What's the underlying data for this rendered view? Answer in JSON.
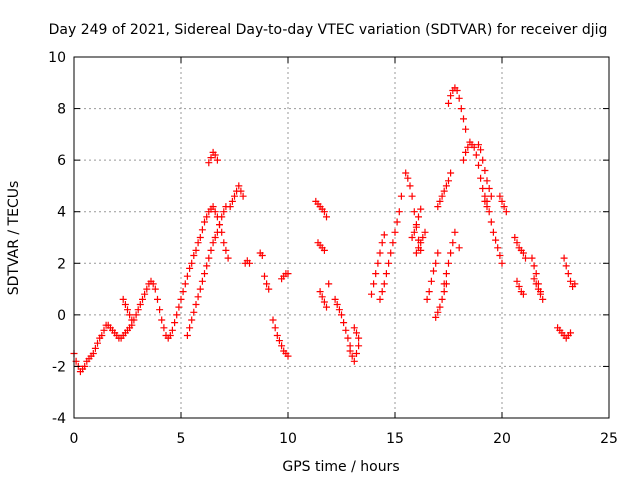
{
  "chart_data": {
    "type": "scatter",
    "title": "Day 249 of 2021, Sidereal Day-to-day VTEC variation (SDTVAR) for receiver djig",
    "xlabel": "GPS time / hours",
    "ylabel": "SDTVAR / TECUs",
    "xlim": [
      0,
      25
    ],
    "ylim": [
      -4,
      10
    ],
    "xticks": [
      "0",
      "5",
      "10",
      "15",
      "20",
      "25"
    ],
    "yticks": [
      "-4",
      "-2",
      "0",
      "2",
      "4",
      "6",
      "8",
      "10"
    ],
    "grid": true,
    "marker": "+",
    "color": "#ff0000",
    "series": [
      {
        "name": "SDTVAR",
        "x": [
          0.0,
          0.1,
          0.2,
          0.3,
          0.4,
          0.5,
          0.6,
          0.7,
          0.8,
          0.9,
          1.0,
          1.1,
          1.2,
          1.3,
          1.4,
          1.5,
          1.6,
          1.7,
          1.8,
          1.9,
          2.0,
          2.1,
          2.2,
          2.3,
          2.4,
          2.5,
          2.6,
          2.7,
          2.8,
          2.9,
          3.0,
          3.1,
          3.2,
          3.3,
          3.4,
          3.5,
          3.6,
          3.7,
          3.8,
          3.9,
          4.0,
          4.1,
          4.2,
          4.3,
          2.3,
          2.4,
          2.5,
          2.6,
          2.7,
          4.4,
          4.5,
          4.6,
          4.7,
          4.8,
          4.9,
          5.0,
          5.1,
          5.2,
          5.3,
          5.4,
          5.5,
          5.6,
          5.7,
          5.8,
          5.9,
          6.0,
          6.1,
          6.2,
          6.3,
          6.4,
          6.5,
          6.6,
          6.7,
          6.8,
          6.9,
          7.0,
          7.1,
          7.2,
          5.3,
          5.4,
          5.5,
          5.6,
          5.7,
          5.8,
          5.9,
          6.0,
          6.1,
          6.2,
          6.3,
          6.4,
          6.5,
          6.6,
          6.7,
          6.8,
          6.9,
          7.0,
          7.1,
          6.3,
          6.4,
          6.5,
          6.6,
          6.7,
          7.3,
          7.4,
          7.5,
          7.6,
          7.7,
          7.8,
          7.9,
          8.0,
          8.1,
          8.2,
          8.7,
          8.8,
          8.9,
          9.0,
          9.1,
          9.3,
          9.4,
          9.5,
          9.6,
          9.7,
          9.8,
          9.9,
          10.0,
          9.7,
          9.8,
          9.9,
          10.0,
          11.3,
          11.4,
          11.5,
          11.6,
          11.7,
          11.8,
          11.4,
          11.5,
          11.6,
          11.7,
          11.5,
          11.6,
          11.7,
          11.8,
          11.9,
          12.2,
          12.3,
          12.4,
          12.5,
          12.6,
          12.7,
          12.8,
          12.9,
          12.9,
          13.0,
          13.1,
          13.2,
          13.3,
          13.3,
          13.2,
          13.1,
          13.9,
          14.0,
          14.1,
          14.2,
          14.3,
          14.4,
          14.5,
          14.3,
          14.4,
          14.5,
          14.6,
          14.7,
          14.8,
          14.9,
          15.0,
          15.1,
          15.2,
          15.3,
          15.5,
          15.6,
          15.7,
          15.8,
          15.9,
          16.0,
          16.1,
          16.2,
          15.8,
          15.9,
          16.0,
          16.1,
          16.2,
          16.0,
          16.1,
          16.2,
          16.3,
          16.4,
          16.5,
          16.6,
          16.7,
          16.8,
          16.9,
          17.0,
          17.0,
          17.1,
          17.2,
          17.3,
          17.4,
          17.5,
          17.6,
          16.9,
          17.0,
          17.1,
          17.2,
          17.3,
          17.4,
          17.3,
          17.4,
          17.5,
          17.6,
          17.7,
          17.8,
          18.0,
          17.5,
          17.6,
          17.7,
          17.8,
          17.9,
          18.0,
          18.1,
          18.2,
          18.3,
          18.2,
          18.3,
          18.4,
          18.5,
          18.6,
          18.7,
          18.8,
          18.9,
          19.0,
          19.1,
          19.2,
          19.3,
          18.9,
          19.0,
          19.1,
          19.2,
          19.3,
          19.4,
          19.5,
          19.2,
          19.3,
          19.4,
          19.5,
          19.6,
          19.7,
          19.8,
          19.9,
          20.0,
          19.9,
          20.0,
          20.1,
          20.2,
          20.6,
          20.7,
          20.8,
          20.9,
          21.0,
          21.1,
          20.7,
          20.8,
          20.9,
          21.0,
          21.4,
          21.5,
          21.6,
          21.7,
          21.8,
          21.9,
          21.5,
          21.6,
          21.7,
          21.8,
          22.9,
          23.0,
          23.1,
          23.2,
          23.3,
          23.4,
          22.6,
          22.7,
          22.8,
          22.9,
          23.0,
          23.1,
          23.2
        ],
        "y": [
          -1.5,
          -1.8,
          -2.0,
          -2.2,
          -2.1,
          -2.0,
          -1.8,
          -1.7,
          -1.6,
          -1.5,
          -1.3,
          -1.1,
          -0.9,
          -0.8,
          -0.6,
          -0.4,
          -0.4,
          -0.5,
          -0.6,
          -0.7,
          -0.8,
          -0.9,
          -0.9,
          -0.8,
          -0.7,
          -0.6,
          -0.5,
          -0.4,
          -0.2,
          0.0,
          0.2,
          0.4,
          0.6,
          0.8,
          1.0,
          1.2,
          1.3,
          1.2,
          1.0,
          0.6,
          0.2,
          -0.2,
          -0.5,
          -0.8,
          0.6,
          0.4,
          0.2,
          0.0,
          -0.2,
          -0.9,
          -0.8,
          -0.6,
          -0.3,
          0.0,
          0.3,
          0.6,
          0.9,
          1.2,
          1.5,
          1.8,
          2.0,
          2.3,
          2.5,
          2.8,
          3.0,
          3.3,
          3.6,
          3.8,
          4.0,
          4.1,
          4.2,
          4.0,
          3.8,
          3.5,
          3.2,
          2.8,
          2.5,
          2.2,
          -0.8,
          -0.5,
          -0.2,
          0.1,
          0.4,
          0.7,
          1.0,
          1.3,
          1.6,
          1.9,
          2.2,
          2.5,
          2.8,
          3.0,
          3.2,
          3.5,
          3.8,
          4.0,
          4.2,
          5.9,
          6.1,
          6.3,
          6.2,
          6.0,
          4.2,
          4.4,
          4.6,
          4.8,
          5.0,
          4.8,
          4.6,
          2.0,
          2.1,
          2.0,
          2.4,
          2.3,
          1.5,
          1.2,
          1.0,
          -0.2,
          -0.5,
          -0.8,
          -1.0,
          -1.2,
          -1.4,
          -1.5,
          -1.6,
          1.4,
          1.5,
          1.6,
          1.6,
          4.4,
          4.3,
          4.2,
          4.1,
          4.0,
          3.8,
          2.8,
          2.7,
          2.6,
          2.5,
          0.9,
          0.7,
          0.5,
          0.3,
          1.2,
          0.6,
          0.4,
          0.2,
          0.0,
          -0.3,
          -0.6,
          -0.9,
          -1.2,
          -1.4,
          -1.6,
          -1.8,
          -1.5,
          -1.2,
          -0.9,
          -0.7,
          -0.5,
          0.8,
          1.2,
          1.6,
          2.0,
          2.4,
          2.8,
          3.1,
          0.6,
          0.9,
          1.2,
          1.6,
          2.0,
          2.4,
          2.8,
          3.2,
          3.6,
          4.0,
          4.6,
          5.5,
          5.3,
          5.0,
          4.6,
          4.0,
          3.4,
          2.9,
          2.5,
          3.0,
          3.2,
          3.5,
          3.8,
          4.1,
          2.4,
          2.6,
          2.8,
          3.0,
          3.2,
          0.6,
          0.9,
          1.3,
          1.7,
          2.0,
          2.4,
          4.2,
          4.4,
          4.6,
          4.8,
          5.0,
          5.2,
          5.5,
          -0.1,
          0.1,
          0.3,
          0.6,
          0.9,
          1.2,
          1.2,
          1.6,
          2.0,
          2.4,
          2.8,
          3.2,
          2.6,
          8.2,
          8.5,
          8.7,
          8.8,
          8.7,
          8.4,
          8.0,
          7.6,
          7.2,
          6.0,
          6.3,
          6.5,
          6.7,
          6.6,
          6.5,
          6.2,
          5.8,
          5.3,
          4.9,
          4.6,
          4.4,
          6.6,
          6.4,
          6.0,
          5.6,
          5.2,
          4.9,
          4.6,
          4.4,
          4.2,
          4.0,
          3.6,
          3.2,
          2.9,
          2.6,
          2.3,
          2.0,
          4.6,
          4.4,
          4.2,
          4.0,
          3.0,
          2.8,
          2.6,
          2.5,
          2.4,
          2.2,
          1.3,
          1.1,
          0.9,
          0.8,
          2.2,
          1.9,
          1.6,
          1.2,
          0.9,
          0.6,
          1.4,
          1.2,
          1.0,
          0.8,
          2.2,
          1.9,
          1.6,
          1.3,
          1.1,
          1.2,
          -0.5,
          -0.6,
          -0.7,
          -0.8,
          -0.9,
          -0.8,
          -0.7
        ]
      }
    ]
  }
}
